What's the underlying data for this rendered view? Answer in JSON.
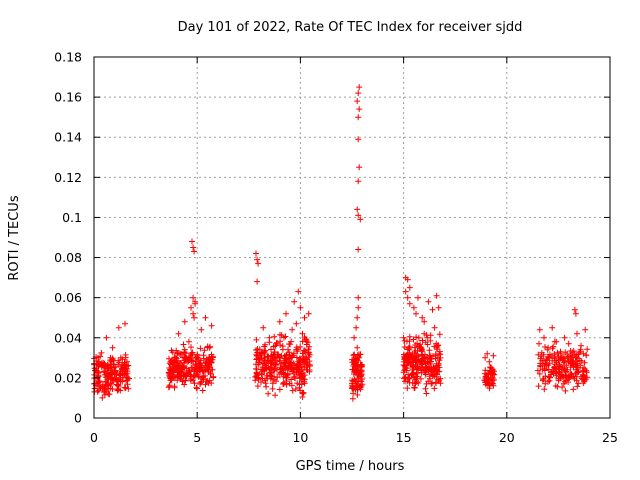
{
  "chart_data": {
    "type": "scatter",
    "title": "Day 101 of 2022, Rate Of TEC Index for receiver sjdd",
    "xlabel": "GPS time / hours",
    "ylabel": "ROTI / TECUs",
    "xlim": [
      0,
      25
    ],
    "ylim": [
      0,
      0.18
    ],
    "xticks": [
      0,
      5,
      10,
      15,
      20,
      25
    ],
    "xtick_labels": [
      "0",
      "5",
      "10",
      "15",
      "20",
      "25"
    ],
    "yticks": [
      0,
      0.02,
      0.04,
      0.06,
      0.08,
      0.1,
      0.12,
      0.14,
      0.16,
      0.18
    ],
    "ytick_labels": [
      "0",
      "0.02",
      "0.04",
      "0.06",
      "0.08",
      "0.1",
      "0.12",
      "0.14",
      "0.16",
      "0.18"
    ],
    "grid": true,
    "marker": "+",
    "color": "#ff0000",
    "clusters": [
      {
        "x": [
          0.0,
          1.7
        ],
        "y": [
          0.008,
          0.036
        ],
        "n": 180
      },
      {
        "x": [
          3.6,
          5.8
        ],
        "y": [
          0.01,
          0.04
        ],
        "n": 260
      },
      {
        "x": [
          7.8,
          10.5
        ],
        "y": [
          0.008,
          0.045
        ],
        "n": 320
      },
      {
        "x": [
          12.5,
          13.0
        ],
        "y": [
          0.005,
          0.04
        ],
        "n": 90
      },
      {
        "x": [
          15.0,
          16.8
        ],
        "y": [
          0.01,
          0.045
        ],
        "n": 240
      },
      {
        "x": [
          18.9,
          19.4
        ],
        "y": [
          0.012,
          0.03
        ],
        "n": 50
      },
      {
        "x": [
          21.5,
          23.9
        ],
        "y": [
          0.01,
          0.04
        ],
        "n": 200
      }
    ],
    "series": [
      {
        "name": "ROTI",
        "x": [
          0.1,
          0.2,
          0.3,
          0.5,
          0.6,
          0.9,
          1.0,
          1.2,
          1.3,
          1.5,
          0.7,
          1.1,
          0.4,
          1.6,
          3.7,
          3.9,
          4.1,
          4.3,
          4.4,
          4.6,
          4.7,
          4.8,
          4.9,
          5.0,
          5.2,
          5.4,
          5.6,
          5.7,
          4.75,
          4.8,
          4.85,
          4.9,
          4.8,
          4.85,
          7.85,
          7.9,
          7.95,
          7.9,
          8.0,
          8.2,
          8.5,
          8.8,
          9.0,
          9.3,
          9.6,
          9.7,
          9.9,
          10.0,
          10.2,
          10.4,
          9.8,
          10.1,
          10.3,
          12.6,
          12.7,
          12.75,
          12.8,
          12.85,
          12.8,
          12.75,
          12.85,
          12.8,
          12.8,
          12.85,
          12.8,
          12.75,
          12.8,
          12.9,
          12.8,
          12.75,
          12.85,
          12.8,
          15.0,
          15.1,
          15.2,
          15.3,
          15.5,
          15.7,
          15.9,
          16.0,
          16.2,
          16.4,
          16.6,
          16.7,
          15.1,
          15.2,
          15.3,
          15.6,
          16.0,
          16.5,
          18.95,
          19.05,
          19.15,
          19.25,
          19.35,
          21.6,
          21.8,
          22.0,
          22.2,
          22.4,
          22.6,
          22.8,
          23.0,
          23.2,
          23.4,
          23.6,
          23.8,
          23.3,
          23.35
        ],
        "y": [
          0.02,
          0.03,
          0.015,
          0.025,
          0.04,
          0.035,
          0.02,
          0.045,
          0.03,
          0.047,
          0.012,
          0.018,
          0.01,
          0.028,
          0.02,
          0.03,
          0.042,
          0.025,
          0.048,
          0.038,
          0.055,
          0.06,
          0.058,
          0.03,
          0.044,
          0.05,
          0.035,
          0.046,
          0.088,
          0.085,
          0.083,
          0.057,
          0.052,
          0.05,
          0.082,
          0.079,
          0.077,
          0.068,
          0.03,
          0.045,
          0.04,
          0.036,
          0.048,
          0.052,
          0.044,
          0.058,
          0.063,
          0.055,
          0.05,
          0.052,
          0.047,
          0.042,
          0.038,
          0.04,
          0.045,
          0.05,
          0.06,
          0.165,
          0.162,
          0.158,
          0.154,
          0.15,
          0.139,
          0.125,
          0.118,
          0.104,
          0.101,
          0.099,
          0.084,
          0.035,
          0.03,
          0.055,
          0.04,
          0.07,
          0.069,
          0.065,
          0.055,
          0.06,
          0.05,
          0.042,
          0.058,
          0.054,
          0.061,
          0.055,
          0.063,
          0.06,
          0.057,
          0.052,
          0.048,
          0.045,
          0.03,
          0.032,
          0.028,
          0.025,
          0.031,
          0.044,
          0.04,
          0.035,
          0.045,
          0.038,
          0.033,
          0.04,
          0.037,
          0.03,
          0.042,
          0.036,
          0.044,
          0.054,
          0.052
        ]
      }
    ]
  }
}
